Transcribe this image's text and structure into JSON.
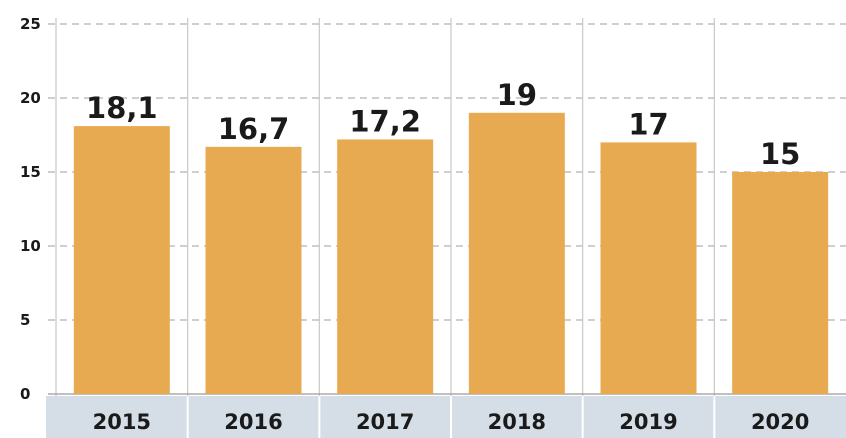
{
  "chart_data": {
    "type": "bar",
    "title": "",
    "xlabel": "",
    "ylabel": "",
    "categories": [
      "2015",
      "2016",
      "2017",
      "2018",
      "2019",
      "2020"
    ],
    "values": [
      18.1,
      16.7,
      17.2,
      19,
      17,
      15
    ],
    "data_labels": [
      "18,1",
      "16,7",
      "17,2",
      "19",
      "17",
      "15"
    ],
    "y_ticks": [
      0,
      5,
      10,
      15,
      20,
      25
    ],
    "ylim": [
      0,
      25
    ],
    "grid": true,
    "bar_color": "#E8AA50",
    "axis_band_color": "#D5DEE6",
    "gridline_color": "#BFBFBF"
  }
}
